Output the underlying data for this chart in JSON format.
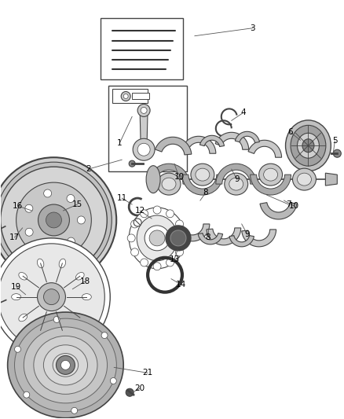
{
  "background_color": "#ffffff",
  "line_color": "#444444",
  "text_color": "#000000",
  "fig_width": 4.38,
  "fig_height": 5.33,
  "dpi": 100
}
